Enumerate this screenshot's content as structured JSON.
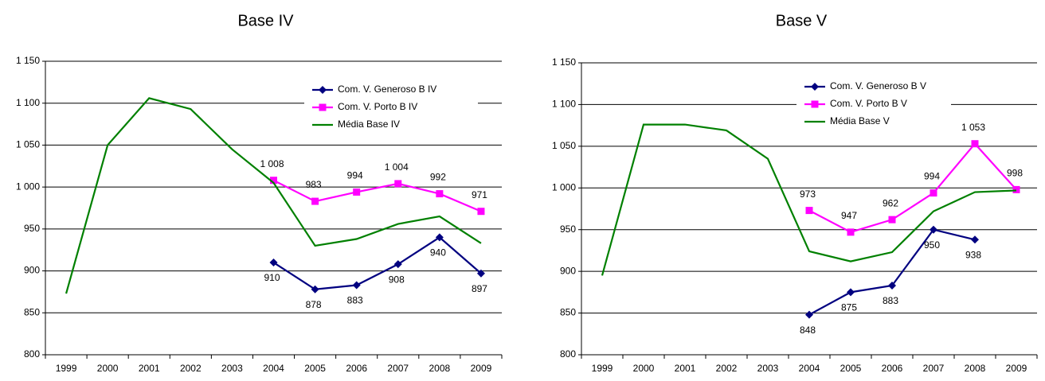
{
  "chart_data": [
    {
      "type": "line",
      "title": "Base IV",
      "categories": [
        "1999",
        "2000",
        "2001",
        "2002",
        "2003",
        "2004",
        "2005",
        "2006",
        "2007",
        "2008",
        "2009"
      ],
      "ylim": [
        800,
        1150
      ],
      "yticks": [
        800,
        850,
        900,
        950,
        {
          "value": 1000,
          "label": "1 000"
        },
        {
          "value": 1050,
          "label": "1 050"
        },
        {
          "value": 1100,
          "label": "1 100"
        },
        {
          "value": 1150,
          "label": "1 150"
        }
      ],
      "grid": true,
      "legend": "top-right",
      "series": [
        {
          "name": "Com. V. Generoso B IV",
          "color": "#000080",
          "marker": "diamond",
          "values": [
            null,
            null,
            null,
            null,
            null,
            910,
            878,
            883,
            908,
            940,
            897
          ]
        },
        {
          "name": "Com. V. Porto B IV",
          "color": "#ff00ff",
          "marker": "square",
          "values": [
            null,
            null,
            null,
            null,
            null,
            1008,
            983,
            994,
            1004,
            992,
            971
          ],
          "value_labels": [
            null,
            null,
            null,
            null,
            null,
            "1 008",
            "983",
            "994",
            "1 004",
            "992",
            "971"
          ]
        },
        {
          "name": "Média Base IV",
          "color": "#008000",
          "values": [
            873,
            1050,
            1106,
            1093,
            1045,
            1005,
            930,
            938,
            956,
            965,
            933
          ]
        }
      ]
    },
    {
      "type": "line",
      "title": "Base V",
      "categories": [
        "1999",
        "2000",
        "2001",
        "2002",
        "2003",
        "2004",
        "2005",
        "2006",
        "2007",
        "2008",
        "2009"
      ],
      "ylim": [
        800,
        1150
      ],
      "yticks": [
        800,
        850,
        900,
        950,
        {
          "value": 1000,
          "label": "1 000"
        },
        {
          "value": 1050,
          "label": "1 050"
        },
        {
          "value": 1100,
          "label": "1 100"
        },
        {
          "value": 1150,
          "label": "1 150"
        }
      ],
      "grid": true,
      "legend": "top-right",
      "series": [
        {
          "name": "Com. V. Generoso B V",
          "color": "#000080",
          "marker": "diamond",
          "values": [
            null,
            null,
            null,
            null,
            null,
            848,
            875,
            883,
            950,
            938,
            null
          ]
        },
        {
          "name": "Com. V. Porto B V",
          "color": "#ff00ff",
          "marker": "square",
          "values": [
            null,
            null,
            null,
            null,
            null,
            973,
            947,
            962,
            994,
            1053,
            998
          ],
          "value_labels": [
            null,
            null,
            null,
            null,
            null,
            "973",
            "947",
            "962",
            "994",
            "1 053",
            "998"
          ]
        },
        {
          "name": "Média Base V",
          "color": "#008000",
          "values": [
            895,
            1076,
            1076,
            1069,
            1035,
            924,
            912,
            923,
            972,
            995,
            997
          ]
        }
      ]
    }
  ]
}
